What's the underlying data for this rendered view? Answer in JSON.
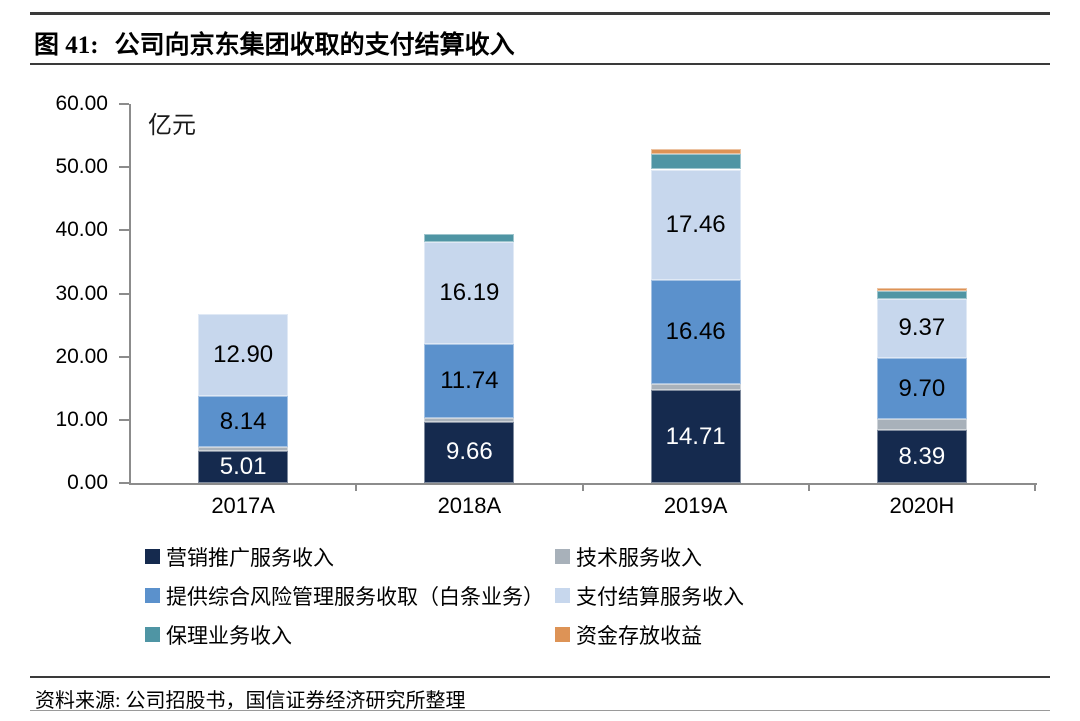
{
  "title": {
    "prefix": "图 41:",
    "text": "公司向京东集团收取的支付结算收入"
  },
  "source": "资料来源: 公司招股书，国信证券经济研究所整理",
  "chart_data": {
    "type": "bar",
    "stacked": true,
    "title": "公司向京东集团收取的支付结算收入",
    "unit_label": "亿元",
    "categories": [
      "2017A",
      "2018A",
      "2019A",
      "2020H"
    ],
    "series": [
      {
        "name": "营销推广服务收入",
        "color": "#152a4e",
        "label_color": "#ffffff",
        "show_labels": true,
        "values": [
          5.01,
          9.66,
          14.71,
          8.39
        ]
      },
      {
        "name": "技术服务收入",
        "color": "#a8b1ba",
        "show_labels": false,
        "values": [
          0.65,
          0.6,
          1.0,
          1.7
        ]
      },
      {
        "name": "提供综合风险管理服务收取（白条业务）",
        "color": "#5b91cc",
        "label_color": "#000000",
        "show_labels": true,
        "values": [
          8.14,
          11.74,
          16.46,
          9.7
        ]
      },
      {
        "name": "支付结算服务收入",
        "color": "#c7d7ed",
        "label_color": "#000000",
        "show_labels": true,
        "values": [
          12.9,
          16.19,
          17.46,
          9.37
        ]
      },
      {
        "name": "保理业务收入",
        "color": "#4f95a4",
        "show_labels": false,
        "values": [
          0,
          1.3,
          2.5,
          1.2
        ]
      },
      {
        "name": "资金存放收益",
        "color": "#dd9356",
        "show_labels": false,
        "values": [
          0,
          0,
          0.7,
          0.5
        ]
      }
    ],
    "ylim": [
      0,
      60
    ],
    "yticks": [
      0,
      10,
      20,
      30,
      40,
      50,
      60
    ],
    "ytick_labels": [
      "0.00",
      "10.00",
      "20.00",
      "30.00",
      "40.00",
      "50.00",
      "60.00"
    ],
    "grid": false,
    "legend_position": "bottom",
    "legend_rows": [
      [
        "营销推广服务收入",
        "技术服务收入"
      ],
      [
        "提供综合风险管理服务收取（白条业务）",
        "支付结算服务收入"
      ],
      [
        "保理业务收入",
        "资金存放收益"
      ]
    ]
  }
}
